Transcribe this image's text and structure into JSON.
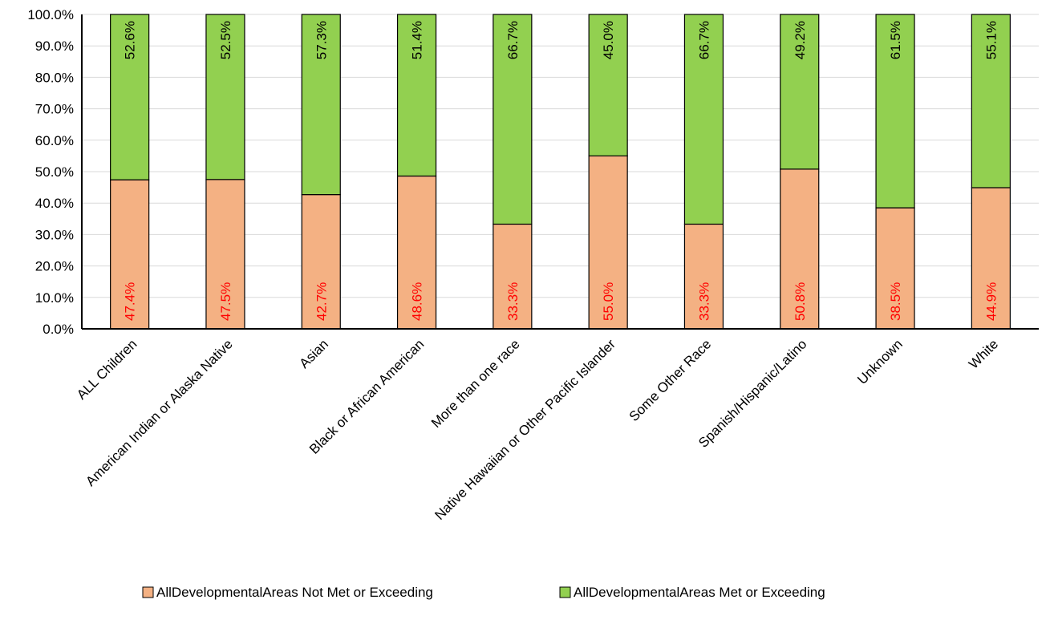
{
  "chart_data": {
    "type": "bar",
    "stacked": true,
    "categories": [
      "ALL Children",
      "American Indian or Alaska Native",
      "Asian",
      "Black or African American",
      "More than one race",
      "Native Hawaiian or Other Pacific Islander",
      "Some Other Race",
      "Spanish/Hispanic/Latino",
      "Unknown",
      "White"
    ],
    "series": [
      {
        "name": "AllDevelopmentalAreas Not Met or Exceeding",
        "values": [
          47.4,
          47.5,
          42.7,
          48.6,
          33.3,
          55.0,
          33.3,
          50.8,
          38.5,
          44.9
        ],
        "labels": [
          "47.4%",
          "47.5%",
          "42.7%",
          "48.6%",
          "33.3%",
          "55.0%",
          "33.3%",
          "50.8%",
          "38.5%",
          "44.9%"
        ],
        "color": "#F4B183",
        "label_color": "#FF0000"
      },
      {
        "name": "AllDevelopmentalAreas Met or Exceeding",
        "values": [
          52.6,
          52.5,
          57.3,
          51.4,
          66.7,
          45.0,
          66.7,
          49.2,
          61.5,
          55.1
        ],
        "labels": [
          "52.6%",
          "52.5%",
          "57.3%",
          "51.4%",
          "66.7%",
          "45.0%",
          "66.7%",
          "49.2%",
          "61.5%",
          "55.1%"
        ],
        "color": "#92D050",
        "label_color": "#000000"
      }
    ],
    "ylim": [
      0,
      100
    ],
    "yticks": [
      "0.0%",
      "10.0%",
      "20.0%",
      "30.0%",
      "40.0%",
      "50.0%",
      "60.0%",
      "70.0%",
      "80.0%",
      "90.0%",
      "100.0%"
    ],
    "grid": true,
    "legend_position": "bottom",
    "title": "",
    "xlabel": "",
    "ylabel": ""
  }
}
